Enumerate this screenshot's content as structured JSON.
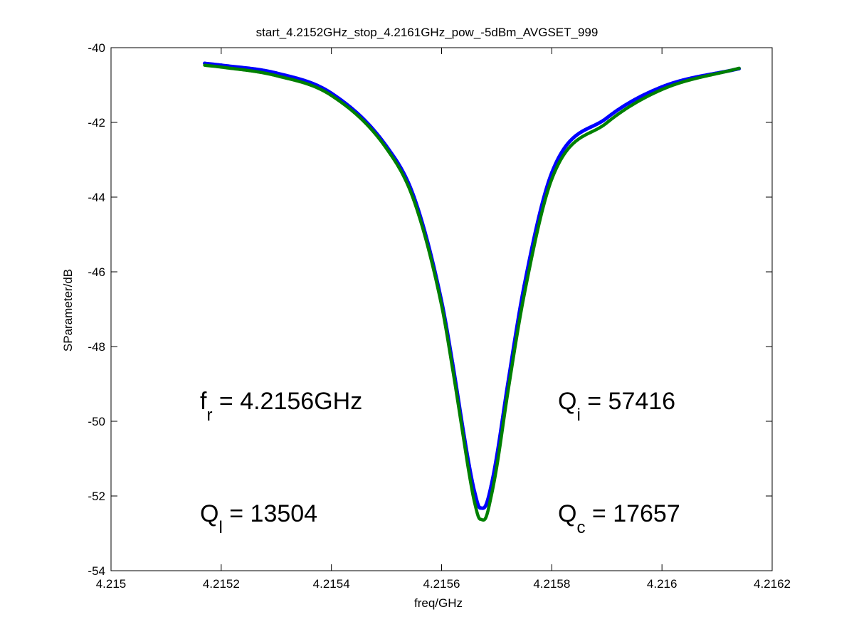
{
  "chart_data": {
    "type": "line",
    "title": "start_4.2152GHz_stop_4.2161GHz_pow_-5dBm_AVGSET_999",
    "xlabel": "freq/GHz",
    "ylabel": "SParameter/dB",
    "xlim": [
      4.215,
      4.2162
    ],
    "ylim": [
      -54,
      -40
    ],
    "x_ticks": [
      4.215,
      4.2152,
      4.2154,
      4.2156,
      4.2158,
      4.216,
      4.2162
    ],
    "x_tick_labels": [
      "4.215",
      "4.2152",
      "4.2154",
      "4.2156",
      "4.2158",
      "4.216",
      "4.2162"
    ],
    "y_ticks": [
      -54,
      -52,
      -50,
      -48,
      -46,
      -44,
      -42,
      -40
    ],
    "y_tick_labels": [
      "-54",
      "-52",
      "-50",
      "-48",
      "-46",
      "-44",
      "-42",
      "-40"
    ],
    "grid": false,
    "legend": "none",
    "series": [
      {
        "color": "#0000ff",
        "style": "measured data, dense thin line",
        "x": [
          4.21517,
          4.2152,
          4.2153,
          4.2154,
          4.2155,
          4.21555,
          4.2156,
          4.21562,
          4.21564,
          4.21565,
          4.21566,
          4.21567,
          4.21568,
          4.21569,
          4.2157,
          4.21572,
          4.21575,
          4.2158,
          4.2159,
          4.216,
          4.21614
        ],
        "y": [
          -40.42,
          -40.47,
          -40.68,
          -41.22,
          -42.64,
          -44.0,
          -46.79,
          -48.45,
          -50.31,
          -51.18,
          -51.9,
          -52.32,
          -52.26,
          -51.73,
          -50.95,
          -49.02,
          -46.37,
          -43.35,
          -41.88,
          -41.05,
          -40.56
        ]
      },
      {
        "color": "#008000",
        "style": "fit, thick line",
        "x": [
          4.21517,
          4.2152,
          4.2153,
          4.2154,
          4.2155,
          4.21555,
          4.2156,
          4.21562,
          4.21564,
          4.21565,
          4.21566,
          4.21567,
          4.21568,
          4.21569,
          4.2157,
          4.21572,
          4.21575,
          4.2158,
          4.2159,
          4.216,
          4.21614
        ],
        "y": [
          -40.47,
          -40.52,
          -40.75,
          -41.28,
          -42.7,
          -44.1,
          -46.9,
          -48.6,
          -50.47,
          -51.4,
          -52.18,
          -52.62,
          -52.59,
          -52.01,
          -51.23,
          -49.25,
          -46.61,
          -43.52,
          -42.01,
          -41.12,
          -40.55
        ]
      }
    ],
    "annotations": [
      {
        "main": "f",
        "sub": "r",
        "rest": " = 4.2156GHz"
      },
      {
        "main": "Q",
        "sub": "i",
        "rest": " = 57416"
      },
      {
        "main": "Q",
        "sub": "l",
        "rest": " = 13504"
      },
      {
        "main": "Q",
        "sub": "c",
        "rest": " = 17657"
      }
    ]
  }
}
